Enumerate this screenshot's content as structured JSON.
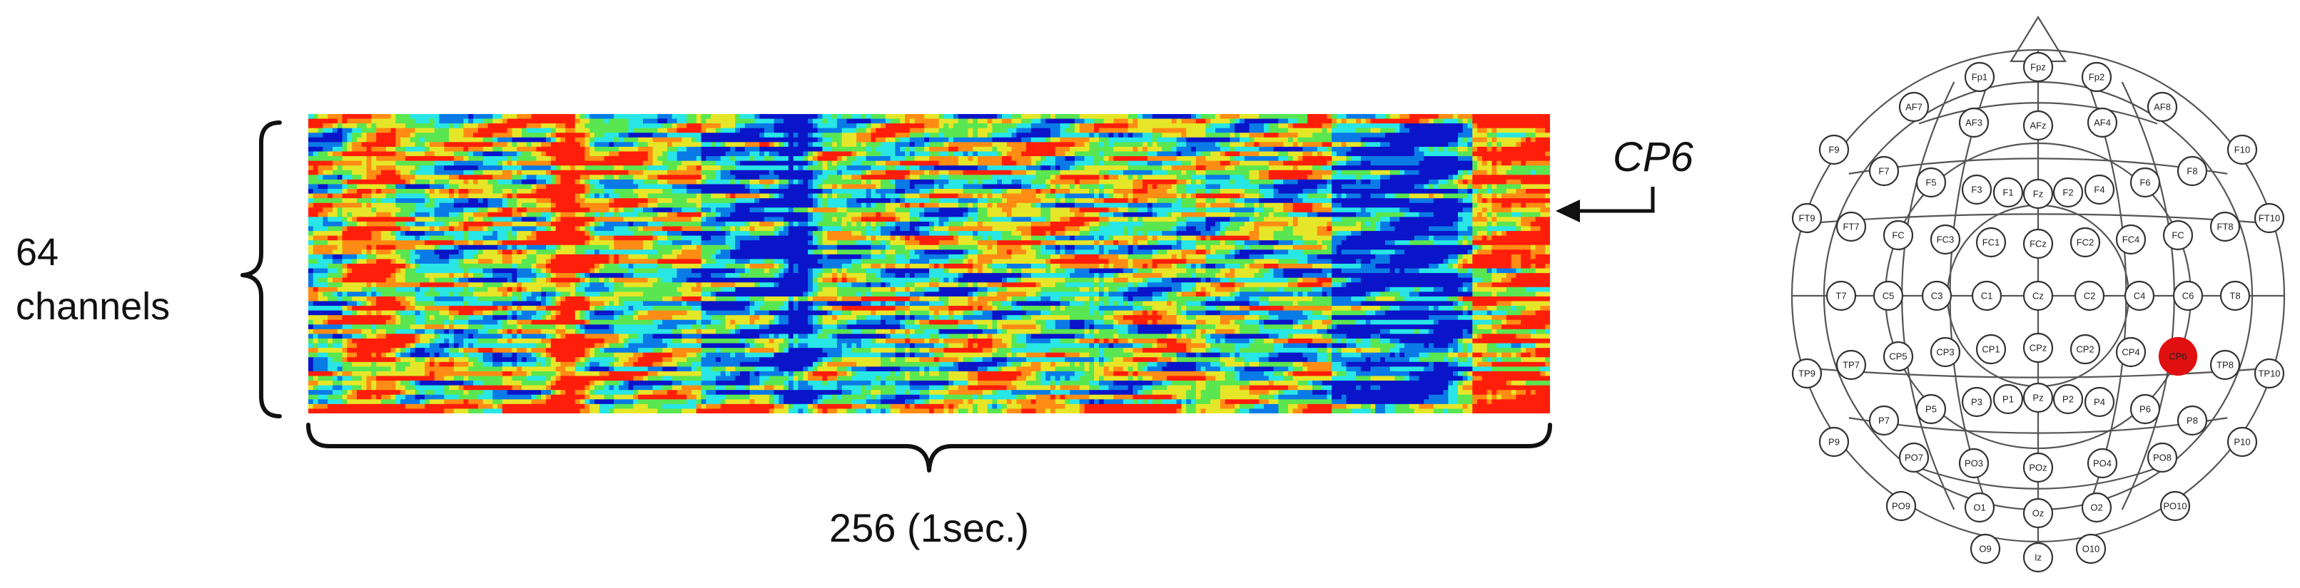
{
  "diagram": {
    "channels_label_line1": "64",
    "channels_label_line2": "channels",
    "samples_label": "256 (1sec.)",
    "pointer_label": "CP6",
    "heatmap_colors": [
      "#0a14c8",
      "#0a7ae6",
      "#28e6e6",
      "#5ae650",
      "#e6e628",
      "#ff8c14",
      "#ff1e0a"
    ],
    "highlight_color": "#e01010",
    "electrodes": [
      {
        "label": "Fpz"
      },
      {
        "label": "Fp1"
      },
      {
        "label": "Fp2"
      },
      {
        "label": "AF7"
      },
      {
        "label": "AF3"
      },
      {
        "label": "AFz"
      },
      {
        "label": "AF4"
      },
      {
        "label": "AF8"
      },
      {
        "label": "F9"
      },
      {
        "label": "F7"
      },
      {
        "label": "F5"
      },
      {
        "label": "F3"
      },
      {
        "label": "F1"
      },
      {
        "label": "Fz"
      },
      {
        "label": "F2"
      },
      {
        "label": "F4"
      },
      {
        "label": "F6"
      },
      {
        "label": "F8"
      },
      {
        "label": "F10"
      },
      {
        "label": "FT9"
      },
      {
        "label": "FT7"
      },
      {
        "label": "FC"
      },
      {
        "label": "FC3"
      },
      {
        "label": "FC1"
      },
      {
        "label": "FCz"
      },
      {
        "label": "FC2"
      },
      {
        "label": "FC4"
      },
      {
        "label": "FC"
      },
      {
        "label": "FT8"
      },
      {
        "label": "FT10"
      },
      {
        "label": "T7"
      },
      {
        "label": "C5"
      },
      {
        "label": "C3"
      },
      {
        "label": "C1"
      },
      {
        "label": "Cz"
      },
      {
        "label": "C2"
      },
      {
        "label": "C4"
      },
      {
        "label": "C6"
      },
      {
        "label": "T8"
      },
      {
        "label": "TP9"
      },
      {
        "label": "TP7"
      },
      {
        "label": "CP5"
      },
      {
        "label": "CP3"
      },
      {
        "label": "CP1"
      },
      {
        "label": "CPz"
      },
      {
        "label": "CP2"
      },
      {
        "label": "CP4"
      },
      {
        "label": "CP6",
        "highlight": true
      },
      {
        "label": "TP8"
      },
      {
        "label": "TP10"
      },
      {
        "label": "P7"
      },
      {
        "label": "P5"
      },
      {
        "label": "P3"
      },
      {
        "label": "P1"
      },
      {
        "label": "Pz"
      },
      {
        "label": "P2"
      },
      {
        "label": "P4"
      },
      {
        "label": "P6"
      },
      {
        "label": "P8"
      },
      {
        "label": "P9"
      },
      {
        "label": "PO7"
      },
      {
        "label": "PO3"
      },
      {
        "label": "POz"
      },
      {
        "label": "PO4"
      },
      {
        "label": "PO8"
      },
      {
        "label": "P10"
      },
      {
        "label": "PO9"
      },
      {
        "label": "O1"
      },
      {
        "label": "Oz"
      },
      {
        "label": "O2"
      },
      {
        "label": "PO10"
      },
      {
        "label": "O9"
      },
      {
        "label": "Iz"
      },
      {
        "label": "O10"
      }
    ]
  }
}
